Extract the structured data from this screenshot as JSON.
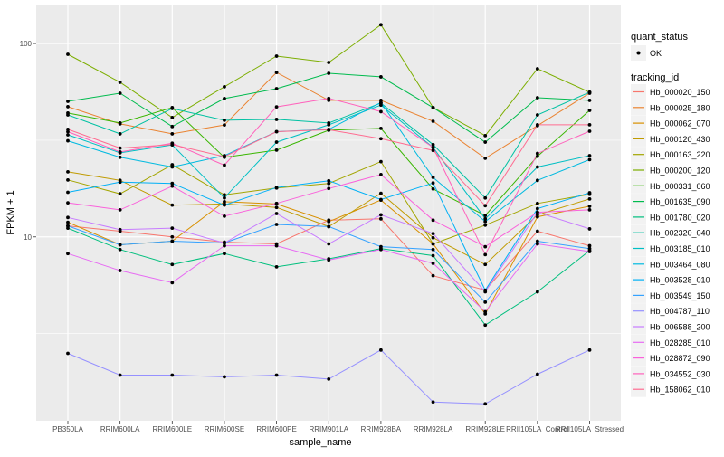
{
  "chart_data": {
    "type": "line",
    "xlabel": "sample_name",
    "ylabel": "FPKM + 1",
    "y_scale": "log10",
    "ylim": [
      1.12,
      159
    ],
    "y_ticks": [
      10,
      100
    ],
    "y_tick_labels": [
      "10",
      "100"
    ],
    "grid": true,
    "legend_position": "right",
    "point_legend": {
      "title": "quant_status",
      "entries": [
        "OK"
      ]
    },
    "color_legend_title": "tracking_id",
    "categories": [
      "PB350LA",
      "RRIM600LA",
      "RRIM600LE",
      "RRIM600SE",
      "RRIM600PE",
      "RRIM901LA",
      "RRIM928BA",
      "RRIM928LA",
      "RRIM928LE",
      "RRII105LA_Control",
      "RRII105LA_Stressed"
    ],
    "series": [
      {
        "name": "Hb_000020_150",
        "color": "#F8766D",
        "values": [
          11.4,
          10.7,
          10.0,
          9.4,
          9.2,
          12.2,
          12.4,
          6.3,
          5.3,
          10.7,
          9.0
        ]
      },
      {
        "name": "Hb_000025_180",
        "color": "#EA8331",
        "values": [
          47.1,
          38.4,
          34.1,
          37.9,
          70.8,
          50.8,
          50.8,
          39.6,
          25.5,
          37.6,
          55.3
        ]
      },
      {
        "name": "Hb_000062_070",
        "color": "#D89000",
        "values": [
          11.9,
          9.1,
          9.5,
          15.2,
          14.8,
          12.0,
          15.5,
          9.2,
          4.0,
          12.7,
          14.4
        ]
      },
      {
        "name": "Hb_000120_430",
        "color": "#C09B00",
        "values": [
          21.7,
          19.6,
          14.6,
          14.8,
          14.2,
          11.3,
          16.8,
          9.9,
          7.2,
          13.0,
          15.7
        ]
      },
      {
        "name": "Hb_000163_220",
        "color": "#A3A500",
        "values": [
          19.7,
          16.7,
          23.6,
          16.5,
          17.9,
          18.9,
          24.5,
          9.2,
          11.5,
          14.9,
          16.6
        ]
      },
      {
        "name": "Hb_000200_120",
        "color": "#7CAE00",
        "values": [
          87.9,
          63.0,
          41.4,
          59.7,
          86.0,
          79.8,
          125.0,
          46.6,
          33.4,
          74.0,
          56.0
        ]
      },
      {
        "name": "Hb_000331_060",
        "color": "#39B600",
        "values": [
          43.7,
          38.8,
          46.6,
          25.8,
          28.1,
          35.6,
          36.4,
          17.7,
          12.9,
          26.1,
          45.1
        ]
      },
      {
        "name": "Hb_001635_090",
        "color": "#00BB4E",
        "values": [
          50.2,
          55.3,
          37.2,
          51.9,
          58.4,
          70.1,
          67.2,
          46.6,
          30.9,
          52.4,
          50.8
        ]
      },
      {
        "name": "Hb_001780_020",
        "color": "#00BF7D",
        "values": [
          11.1,
          8.6,
          7.2,
          8.2,
          7.0,
          7.7,
          8.7,
          8.0,
          3.5,
          5.2,
          8.5
        ]
      },
      {
        "name": "Hb_002320_040",
        "color": "#00C1A3",
        "values": [
          42.7,
          34.1,
          46.1,
          40.1,
          40.5,
          38.8,
          49.2,
          30.0,
          15.9,
          42.7,
          56.0
        ]
      },
      {
        "name": "Hb_003185_010",
        "color": "#00BFC4",
        "values": [
          33.7,
          27.2,
          29.9,
          15.9,
          30.9,
          38.0,
          48.0,
          29.0,
          12.4,
          23.0,
          26.3
        ]
      },
      {
        "name": "Hb_003464_080",
        "color": "#00BAE0",
        "values": [
          31.4,
          25.8,
          23.0,
          26.3,
          35.0,
          36.0,
          49.5,
          20.3,
          12.0,
          19.6,
          25.1
        ]
      },
      {
        "name": "Hb_003528_010",
        "color": "#00B0F6",
        "values": [
          17.0,
          19.2,
          18.9,
          14.6,
          18.0,
          19.5,
          15.6,
          19.0,
          5.3,
          14.0,
          16.9
        ]
      },
      {
        "name": "Hb_003549_150",
        "color": "#35A2FF",
        "values": [
          11.4,
          9.1,
          9.5,
          9.3,
          11.6,
          11.3,
          8.9,
          8.6,
          4.6,
          9.5,
          8.7
        ]
      },
      {
        "name": "Hb_004787_110",
        "color": "#9590FF",
        "values": [
          2.5,
          1.93,
          1.93,
          1.89,
          1.93,
          1.84,
          2.6,
          1.4,
          1.37,
          1.95,
          2.6
        ]
      },
      {
        "name": "Hb_006588_200",
        "color": "#C77CFF",
        "values": [
          12.6,
          10.9,
          11.1,
          9.3,
          13.2,
          9.2,
          13.0,
          10.4,
          5.2,
          13.4,
          11.0
        ]
      },
      {
        "name": "Hb_028285_010",
        "color": "#E76BF3",
        "values": [
          8.2,
          6.7,
          5.8,
          9.0,
          9.0,
          7.6,
          8.6,
          7.3,
          4.1,
          9.2,
          8.4
        ]
      },
      {
        "name": "Hb_028872_090",
        "color": "#FA62DB",
        "values": [
          15.0,
          13.8,
          18.3,
          12.8,
          14.9,
          17.8,
          21.0,
          12.2,
          8.9,
          13.4,
          13.8
        ]
      },
      {
        "name": "Hb_034552_030",
        "color": "#FF62BC",
        "values": [
          35.0,
          27.5,
          30.5,
          23.5,
          47.0,
          52.0,
          44.4,
          29.0,
          8.1,
          27.0,
          35.2
        ]
      },
      {
        "name": "Hb_158062_010",
        "color": "#FF6C91",
        "values": [
          36.0,
          28.8,
          30.0,
          26.0,
          35.0,
          35.8,
          32.2,
          28.0,
          14.5,
          38.0,
          38.0
        ]
      }
    ]
  }
}
